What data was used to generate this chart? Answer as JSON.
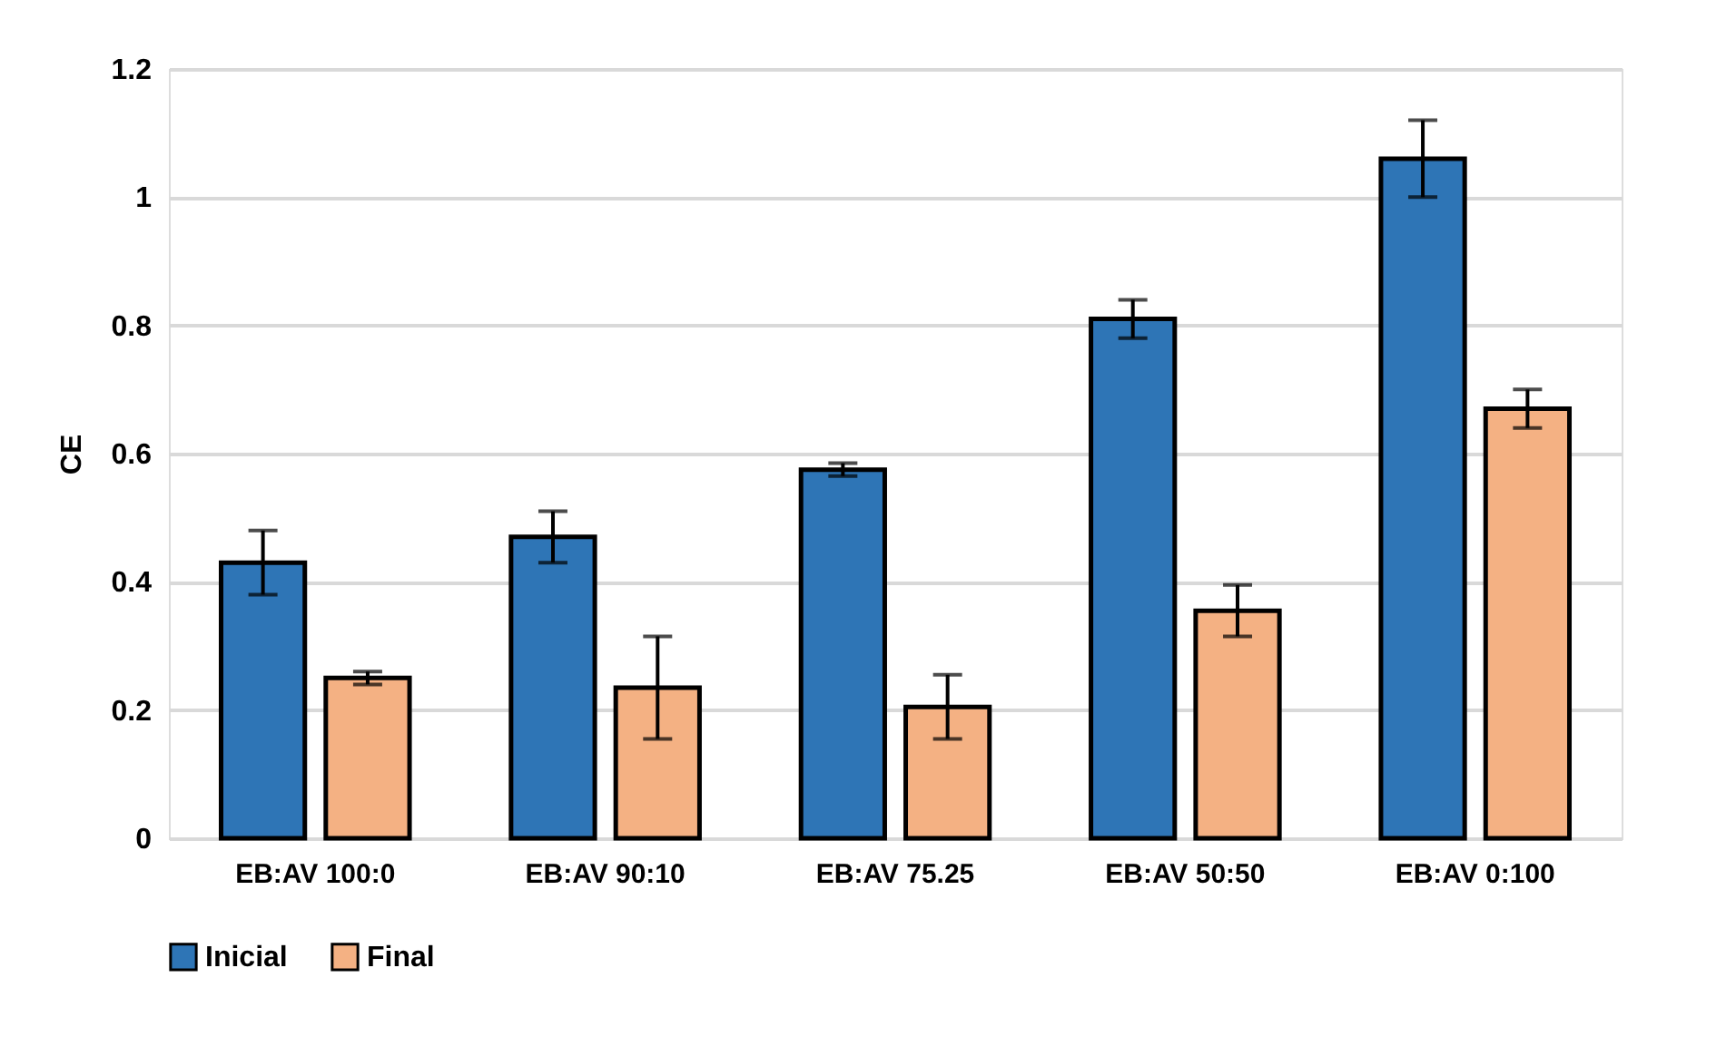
{
  "chart_data": {
    "type": "bar",
    "ylabel": "CE",
    "categories": [
      "EB:AV 100:0",
      "EB:AV 90:10",
      "EB:AV 75.25",
      "EB:AV 50:50",
      "EB:AV 0:100"
    ],
    "series": [
      {
        "name": "Inicial",
        "color": "#2e75b6",
        "values": [
          0.43,
          0.47,
          0.575,
          0.81,
          1.06
        ],
        "errors": [
          0.05,
          0.04,
          0.01,
          0.03,
          0.06
        ]
      },
      {
        "name": "Final",
        "color": "#f4b183",
        "values": [
          0.25,
          0.235,
          0.205,
          0.355,
          0.67
        ],
        "errors": [
          0.01,
          0.08,
          0.05,
          0.04,
          0.03
        ]
      }
    ],
    "ylim": [
      0,
      1.2
    ],
    "yticks": [
      0,
      0.2,
      0.4,
      0.6,
      0.8,
      1,
      1.2
    ],
    "grid": "y",
    "legend": "bottom"
  }
}
